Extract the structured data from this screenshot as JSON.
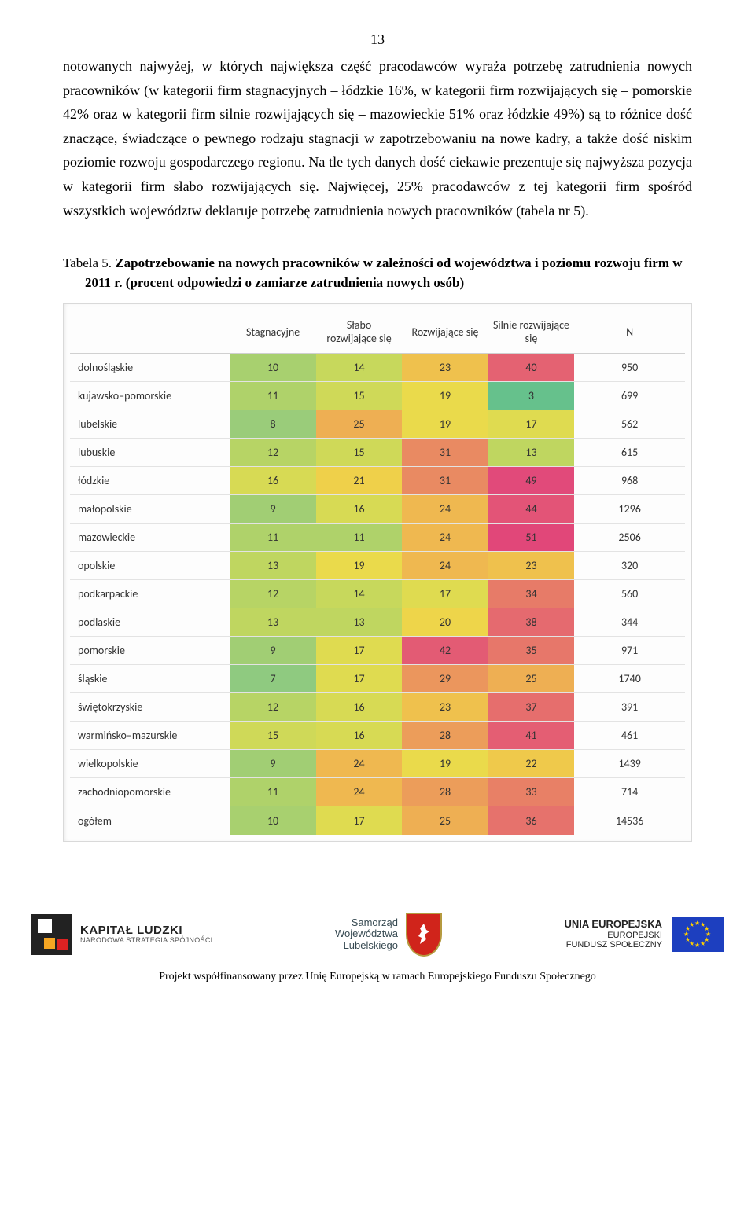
{
  "page_number": "13",
  "body_text": "notowanych najwyżej, w których największa część pracodawców wyraża potrzebę zatrudnienia nowych pracowników (w kategorii firm stagnacyjnych – łódzkie 16%, w kategorii firm rozwijających się – pomorskie 42% oraz w kategorii firm silnie rozwijających się – mazowieckie 51% oraz łódzkie 49%) są to różnice dość znaczące, świadczące o pewnego rodzaju stagnacji w zapotrzebowaniu na nowe kadry, a także dość niskim poziomie rozwoju gospodarczego regionu. Na tle tych danych dość ciekawie prezentuje się najwyższa pozycja w kategorii firm słabo rozwijających się. Najwięcej, 25% pracodawców z tej kategorii firm spośród wszystkich województw deklaruje potrzebę zatrudnienia nowych pracowników (tabela nr 5).",
  "table_caption": {
    "label": "Tabela 5. ",
    "title": "Zapotrzebowanie na nowych pracowników w zależności od województwa i poziomu rozwoju firm w 2011 r. ",
    "subtitle": "(procent odpowiedzi o zamiarze zatrudnienia nowych osób)"
  },
  "table": {
    "columns": [
      "",
      "Stagnacyjne",
      "Słabo rozwijające się",
      "Rozwijające się",
      "Silnie rozwijające się",
      "N"
    ],
    "col_widths_pct": [
      26,
      14,
      14,
      14,
      14,
      18
    ],
    "heat_palette": {
      "3": "#66c18c",
      "7": "#8fca80",
      "8": "#9acc7a",
      "9": "#a1ce74",
      "10": "#a8d06f",
      "11": "#afd26a",
      "12": "#b7d465",
      "13": "#bfd660",
      "14": "#c7d85c",
      "15": "#cfd958",
      "16": "#d7da54",
      "17": "#dfdb50",
      "19": "#eada4b",
      "20": "#eed54a",
      "21": "#efd04a",
      "22": "#efc94b",
      "23": "#efc14d",
      "24": "#efb850",
      "25": "#eeaf53",
      "28": "#ec9d5a",
      "29": "#eb965d",
      "31": "#e98a62",
      "33": "#e88066",
      "34": "#e77b68",
      "35": "#e7776a",
      "36": "#e6726c",
      "37": "#e66e6d",
      "38": "#e56a6f",
      "40": "#e46272",
      "41": "#e45e73",
      "42": "#e35b74",
      "44": "#e35477",
      "49": "#e14a7a",
      "51": "#e14779"
    },
    "rows": [
      {
        "region": "dolnośląskie",
        "v": [
          10,
          14,
          23,
          40
        ],
        "n": 950
      },
      {
        "region": "kujawsko–pomorskie",
        "v": [
          11,
          15,
          19,
          3
        ],
        "n": 699
      },
      {
        "region": "lubelskie",
        "v": [
          8,
          25,
          19,
          17
        ],
        "n": 562
      },
      {
        "region": "lubuskie",
        "v": [
          12,
          15,
          31,
          13
        ],
        "n": 615
      },
      {
        "region": "łódzkie",
        "v": [
          16,
          21,
          31,
          49
        ],
        "n": 968
      },
      {
        "region": "małopolskie",
        "v": [
          9,
          16,
          24,
          44
        ],
        "n": 1296
      },
      {
        "region": "mazowieckie",
        "v": [
          11,
          11,
          24,
          51
        ],
        "n": 2506
      },
      {
        "region": "opolskie",
        "v": [
          13,
          19,
          24,
          23
        ],
        "n": 320
      },
      {
        "region": "podkarpackie",
        "v": [
          12,
          14,
          17,
          34
        ],
        "n": 560
      },
      {
        "region": "podlaskie",
        "v": [
          13,
          13,
          20,
          38
        ],
        "n": 344
      },
      {
        "region": "pomorskie",
        "v": [
          9,
          17,
          42,
          35
        ],
        "n": 971
      },
      {
        "region": "śląskie",
        "v": [
          7,
          17,
          29,
          25
        ],
        "n": 1740
      },
      {
        "region": "świętokrzyskie",
        "v": [
          12,
          16,
          23,
          37
        ],
        "n": 391
      },
      {
        "region": "warmińsko–mazurskie",
        "v": [
          15,
          16,
          28,
          41
        ],
        "n": 461
      },
      {
        "region": "wielkopolskie",
        "v": [
          9,
          24,
          19,
          22
        ],
        "n": 1439
      },
      {
        "region": "zachodniopomorskie",
        "v": [
          11,
          24,
          28,
          33
        ],
        "n": 714
      },
      {
        "region": "ogółem",
        "v": [
          10,
          17,
          25,
          36
        ],
        "n": 14536
      }
    ]
  },
  "footer": {
    "kapital": {
      "line1": "KAPITAŁ LUDZKI",
      "line2": "NARODOWA STRATEGIA SPÓJNOŚCI"
    },
    "samorzad": {
      "line1": "Samorząd",
      "line2": "Województwa",
      "line3": "Lubelskiego"
    },
    "eu": {
      "line1": "UNIA EUROPEJSKA",
      "line2": "EUROPEJSKI",
      "line3": "FUNDUSZ SPOŁECZNY"
    },
    "bottom_line": "Projekt współfinansowany przez Unię Europejską w ramach Europejskiego Funduszu Społecznego"
  }
}
